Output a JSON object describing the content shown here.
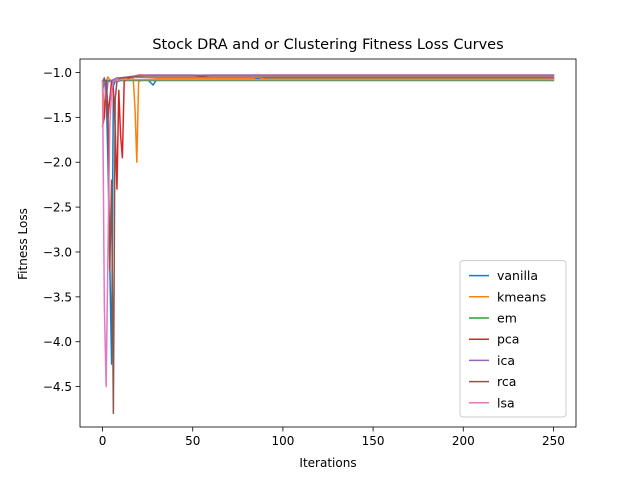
{
  "chart_data": {
    "type": "line",
    "title": "Stock DRA and or Clustering Fitness Loss Curves",
    "xlabel": "Iterations",
    "ylabel": "Fitness Loss",
    "xlim": [
      -12.5,
      262.5
    ],
    "ylim": [
      -4.95,
      -0.85
    ],
    "xticks": [
      0,
      50,
      100,
      150,
      200,
      250
    ],
    "yticks": [
      -1.0,
      -1.5,
      -2.0,
      -2.5,
      -3.0,
      -3.5,
      -4.0,
      -4.5
    ],
    "legend_position": "lower-right",
    "grid": false,
    "series": [
      {
        "name": "vanilla",
        "color": "#1f77b4",
        "x": [
          0,
          1,
          2,
          3,
          4,
          5,
          6,
          7,
          8,
          10,
          15,
          20,
          25,
          28,
          30,
          32,
          40,
          60,
          100,
          150,
          200,
          250
        ],
        "y": [
          -1.1,
          -1.06,
          -1.2,
          -2.0,
          -3.1,
          -4.25,
          -1.15,
          -1.1,
          -1.1,
          -1.09,
          -1.08,
          -1.08,
          -1.08,
          -1.14,
          -1.08,
          -1.07,
          -1.07,
          -1.07,
          -1.07,
          -1.07,
          -1.07,
          -1.07
        ]
      },
      {
        "name": "kmeans",
        "color": "#ff7f0e",
        "x": [
          0,
          1,
          2,
          3,
          4,
          5,
          6,
          8,
          10,
          14,
          17,
          18,
          19,
          20,
          22,
          30,
          40,
          60,
          84,
          86,
          88,
          90,
          100,
          150,
          200,
          250
        ],
        "y": [
          -1.1,
          -1.5,
          -1.1,
          -1.05,
          -1.08,
          -1.1,
          -1.1,
          -1.08,
          -1.07,
          -1.06,
          -1.06,
          -1.4,
          -2.0,
          -1.1,
          -1.08,
          -1.07,
          -1.07,
          -1.07,
          -1.07,
          -1.09,
          -1.07,
          -1.06,
          -1.06,
          -1.06,
          -1.06,
          -1.06
        ]
      },
      {
        "name": "em",
        "color": "#2ca02c",
        "x": [
          0,
          1,
          2,
          5,
          10,
          20,
          50,
          100,
          150,
          200,
          250
        ],
        "y": [
          -1.2,
          -1.1,
          -1.09,
          -1.09,
          -1.09,
          -1.09,
          -1.09,
          -1.09,
          -1.09,
          -1.09,
          -1.09
        ]
      },
      {
        "name": "pca",
        "color": "#d62728",
        "x": [
          0,
          1,
          2,
          3,
          4,
          5,
          6,
          7,
          8,
          9,
          10,
          11,
          12,
          14,
          16,
          20,
          30,
          50,
          55,
          60,
          100,
          150,
          200,
          250
        ],
        "y": [
          -1.6,
          -1.5,
          -1.1,
          -1.5,
          -1.3,
          -1.1,
          -1.2,
          -1.6,
          -2.3,
          -1.2,
          -1.7,
          -1.95,
          -1.1,
          -1.07,
          -1.05,
          -1.03,
          -1.03,
          -1.03,
          -1.04,
          -1.03,
          -1.03,
          -1.03,
          -1.03,
          -1.03
        ]
      },
      {
        "name": "ica",
        "color": "#9467bd",
        "x": [
          0,
          1,
          2,
          3,
          4,
          5,
          6,
          8,
          10,
          14,
          18,
          25,
          40,
          60,
          100,
          150,
          200,
          250
        ],
        "y": [
          -1.1,
          -1.07,
          -1.3,
          -1.1,
          -1.1,
          -1.09,
          -1.08,
          -1.06,
          -1.06,
          -1.05,
          -1.04,
          -1.03,
          -1.03,
          -1.03,
          -1.03,
          -1.03,
          -1.03,
          -1.03
        ]
      },
      {
        "name": "rca",
        "color": "#8c564b",
        "x": [
          0,
          1,
          2,
          3,
          4,
          5,
          6,
          7,
          8,
          10,
          15,
          20,
          30,
          50,
          100,
          150,
          200,
          250
        ],
        "y": [
          -1.1,
          -1.08,
          -1.1,
          -1.4,
          -3.2,
          -2.2,
          -4.8,
          -1.3,
          -1.1,
          -1.06,
          -1.05,
          -1.05,
          -1.05,
          -1.05,
          -1.05,
          -1.05,
          -1.05,
          -1.05
        ]
      },
      {
        "name": "lsa",
        "color": "#e377c2",
        "x": [
          0,
          1,
          2,
          3,
          4,
          5,
          6,
          8,
          10,
          20,
          50,
          100,
          150,
          200,
          250
        ],
        "y": [
          -1.1,
          -3.6,
          -4.5,
          -3.0,
          -1.6,
          -1.2,
          -1.1,
          -1.09,
          -1.08,
          -1.08,
          -1.08,
          -1.08,
          -1.08,
          -1.08,
          -1.08
        ]
      }
    ]
  }
}
